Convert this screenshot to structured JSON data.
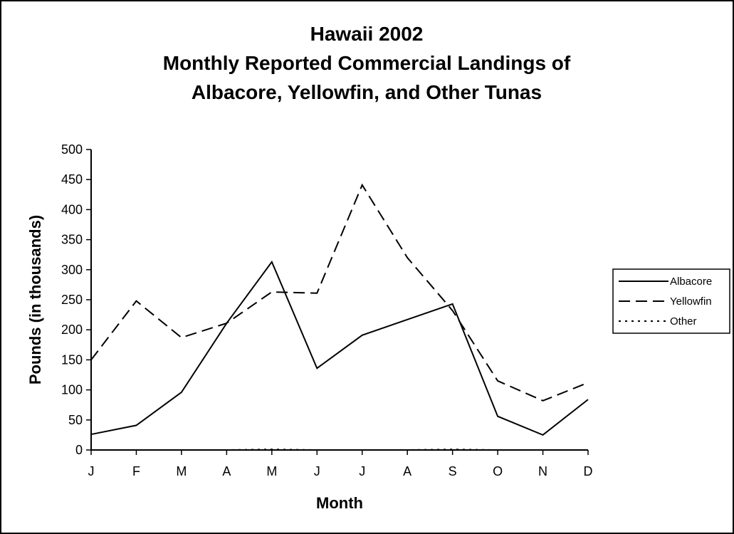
{
  "chart_data": {
    "type": "line",
    "title_lines": [
      "Hawaii 2002",
      "Monthly Reported Commercial Landings of",
      "Albacore, Yellowfin, and Other Tunas"
    ],
    "xlabel": "Month",
    "ylabel": "Pounds (in thousands)",
    "categories": [
      "J",
      "F",
      "M",
      "A",
      "M",
      "J",
      "J",
      "A",
      "S",
      "O",
      "N",
      "D"
    ],
    "ylim": [
      0,
      500
    ],
    "yticks": [
      0,
      50,
      100,
      150,
      200,
      250,
      300,
      350,
      400,
      450,
      500
    ],
    "grid": false,
    "legend_position": "right",
    "series": [
      {
        "name": "Albacore",
        "style": "solid",
        "values": [
          26,
          41,
          96,
          211,
          313,
          136,
          191,
          217,
          243,
          56,
          25,
          84
        ]
      },
      {
        "name": "Yellowfin",
        "style": "dashed",
        "values": [
          150,
          248,
          187,
          211,
          263,
          261,
          441,
          320,
          232,
          115,
          82,
          112
        ]
      },
      {
        "name": "Other",
        "style": "dotted",
        "values": [
          0,
          0,
          0,
          0,
          1,
          0,
          0,
          0,
          1,
          0,
          0,
          0
        ]
      }
    ],
    "colors": {
      "line": "#000000",
      "background": "#ffffff"
    }
  }
}
